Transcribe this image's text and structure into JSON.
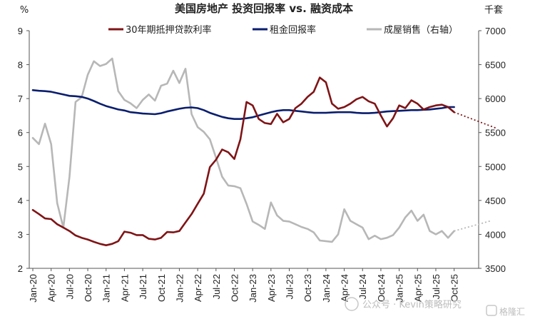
{
  "chart_data": {
    "type": "line",
    "title": "美国房地产 投资回报率 vs. 融资成本",
    "ylabel_left": "%",
    "ylabel_right": "千套",
    "ylim_left": [
      2,
      9
    ],
    "ylim_right": [
      3500,
      7000
    ],
    "yticks_left": [
      "2",
      "3",
      "4",
      "5",
      "6",
      "7",
      "8",
      "9"
    ],
    "yticks_right": [
      "3500",
      "4000",
      "4500",
      "5000",
      "5500",
      "6000",
      "6500",
      "7000"
    ],
    "x_ticks": [
      "Jan-20",
      "Apr-20",
      "Jul-20",
      "Oct-20",
      "Jan-21",
      "Apr-21",
      "Jul-21",
      "Oct-21",
      "Jan-22",
      "Apr-22",
      "Jul-22",
      "Oct-22",
      "Jan-23",
      "Apr-23",
      "Jul-23",
      "Oct-23",
      "Jan-24",
      "Apr-24",
      "Jul-24",
      "Oct-24",
      "Jan-25",
      "Apr-25",
      "Jul-25",
      "Oct-25"
    ],
    "x_start": "2020-01",
    "series": [
      {
        "name": "30年期抵押贷款利率",
        "color": "#7f1416",
        "axis": "left",
        "values": [
          3.72,
          3.6,
          3.47,
          3.45,
          3.3,
          3.2,
          3.1,
          2.97,
          2.9,
          2.85,
          2.78,
          2.72,
          2.68,
          2.72,
          2.8,
          3.08,
          3.05,
          2.98,
          2.98,
          2.87,
          2.85,
          2.9,
          3.07,
          3.06,
          3.1,
          3.35,
          3.6,
          3.9,
          4.2,
          4.98,
          5.2,
          5.5,
          5.42,
          5.22,
          5.8,
          6.9,
          6.8,
          6.4,
          6.28,
          6.25,
          6.55,
          6.3,
          6.4,
          6.72,
          6.85,
          7.05,
          7.2,
          7.62,
          7.48,
          6.85,
          6.7,
          6.75,
          6.85,
          6.98,
          7.05,
          6.92,
          6.85,
          6.5,
          6.18,
          6.42,
          6.8,
          6.72,
          6.95,
          6.85,
          6.68,
          6.75,
          6.8,
          6.82,
          6.75,
          6.6
        ],
        "projection": [
          6.6,
          6.48,
          6.36,
          6.24,
          6.12
        ]
      },
      {
        "name": "租金回报率",
        "color": "#0a1e6e",
        "axis": "left",
        "values": [
          7.25,
          7.23,
          7.22,
          7.2,
          7.16,
          7.12,
          7.08,
          7.07,
          7.05,
          7.0,
          6.93,
          6.85,
          6.78,
          6.73,
          6.68,
          6.65,
          6.6,
          6.58,
          6.56,
          6.55,
          6.54,
          6.57,
          6.62,
          6.66,
          6.7,
          6.73,
          6.74,
          6.72,
          6.66,
          6.58,
          6.52,
          6.46,
          6.42,
          6.4,
          6.4,
          6.42,
          6.45,
          6.5,
          6.55,
          6.6,
          6.64,
          6.66,
          6.66,
          6.64,
          6.62,
          6.6,
          6.58,
          6.58,
          6.58,
          6.59,
          6.6,
          6.6,
          6.6,
          6.58,
          6.57,
          6.57,
          6.58,
          6.6,
          6.62,
          6.63,
          6.64,
          6.65,
          6.66,
          6.66,
          6.67,
          6.68,
          6.7,
          6.72,
          6.75,
          6.75
        ]
      },
      {
        "name": "成屋销售（右轴）",
        "color": "#b7b7b7",
        "axis": "right",
        "values": [
          5420,
          5330,
          5630,
          5330,
          4460,
          4100,
          4850,
          5950,
          6020,
          6350,
          6550,
          6480,
          6510,
          6590,
          6110,
          5980,
          5930,
          5860,
          5980,
          6060,
          5970,
          6190,
          6220,
          6410,
          6230,
          6440,
          5770,
          5580,
          5510,
          5400,
          5130,
          4850,
          4720,
          4710,
          4680,
          4450,
          4190,
          4140,
          4080,
          4470,
          4280,
          4200,
          4190,
          4150,
          4110,
          4080,
          4030,
          3910,
          3900,
          3890,
          4000,
          4370,
          4200,
          4150,
          4100,
          3930,
          3980,
          3930,
          3950,
          3990,
          4100,
          4250,
          4350,
          4200,
          4290,
          4050,
          4000,
          4050,
          3950,
          4050
        ],
        "projection": [
          4050,
          4100,
          4150,
          4200
        ]
      }
    ],
    "legend_position": "top"
  },
  "watermark": {
    "wechat": "公众号 · Kevin策略研究",
    "logo": "格隆汇"
  }
}
